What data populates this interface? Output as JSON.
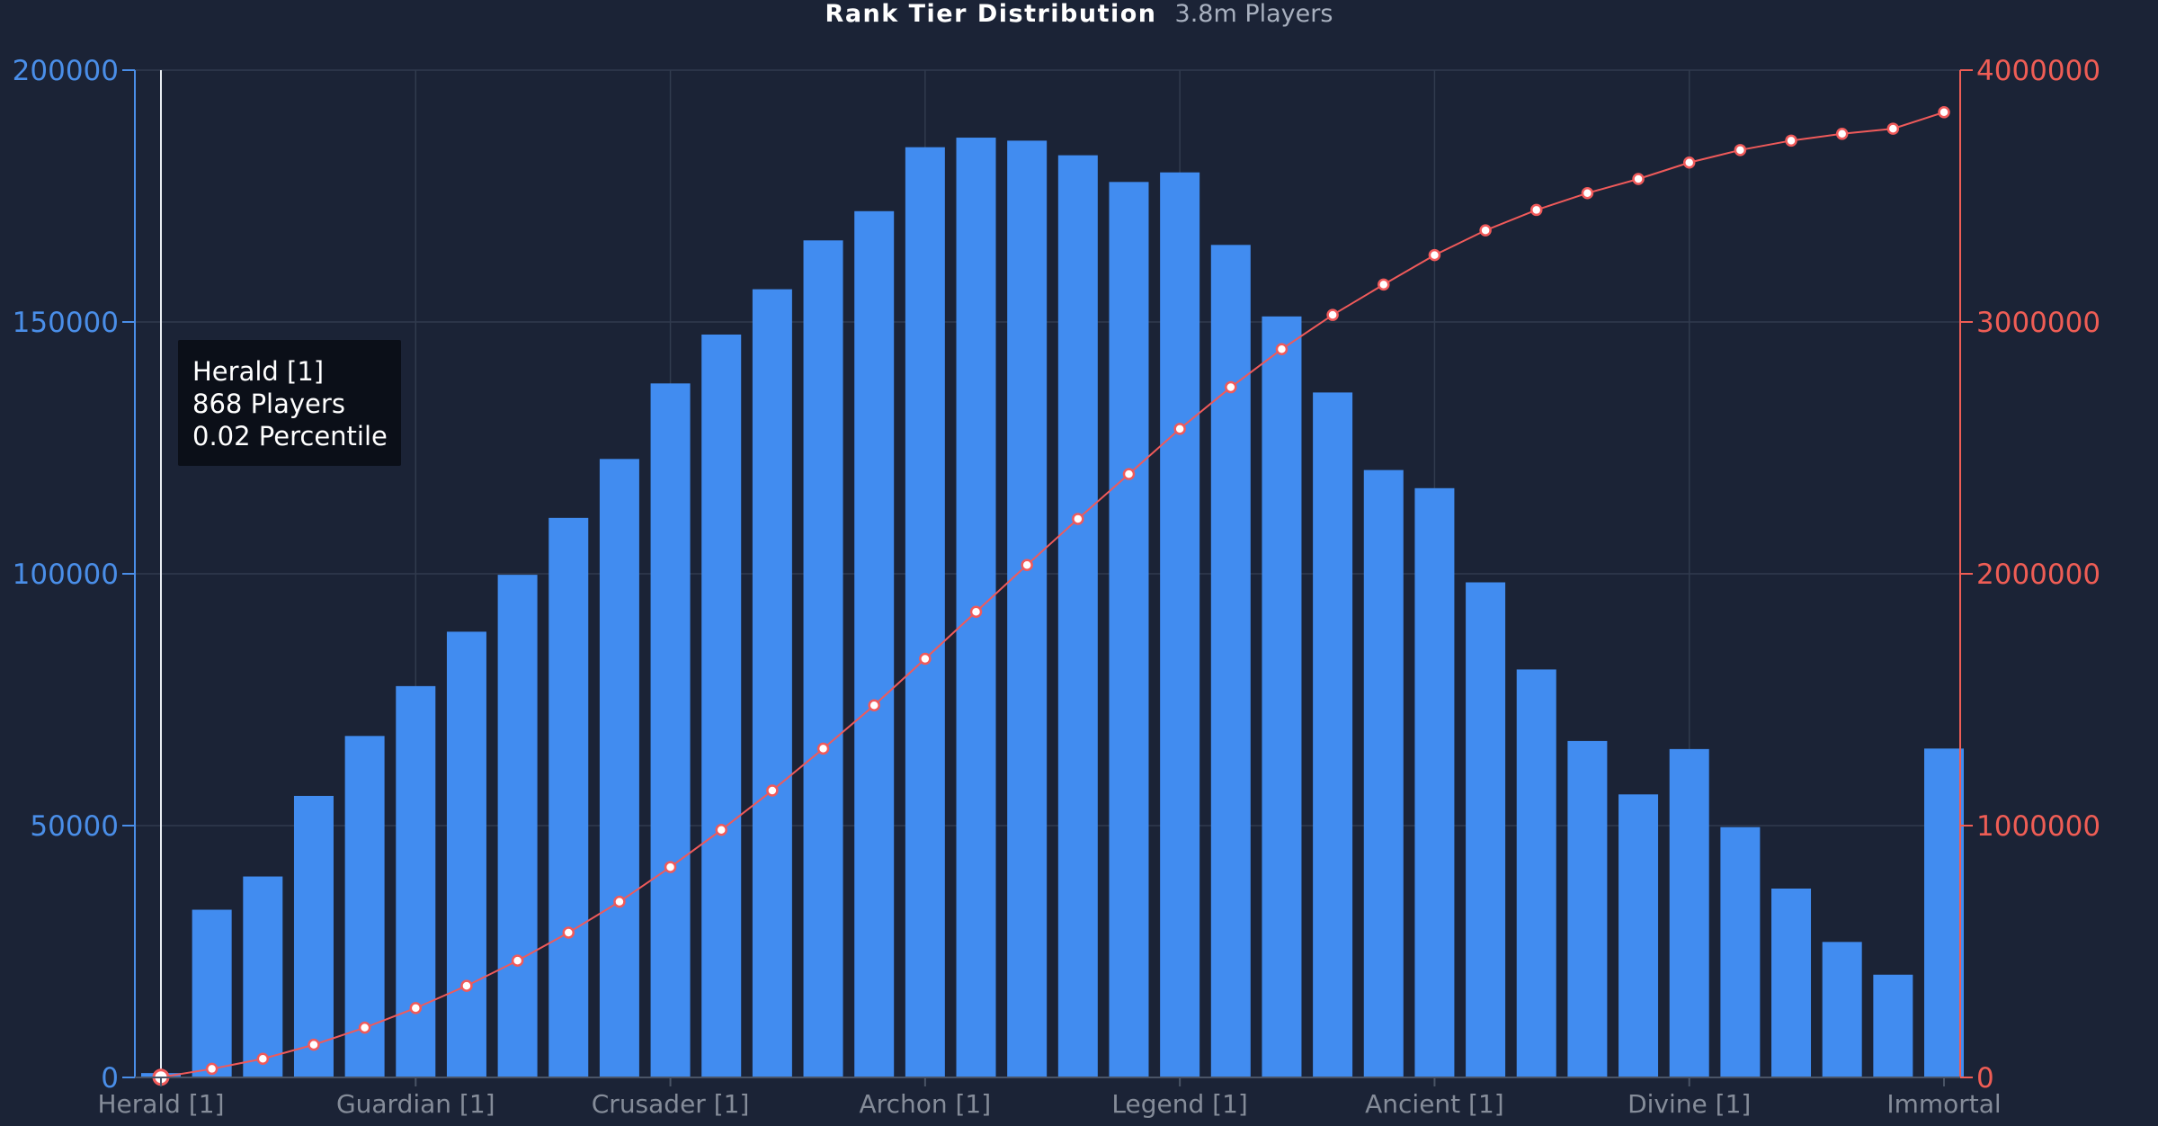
{
  "chart": {
    "title": "Rank Tier Distribution",
    "subtitle": "3.8m Players",
    "tooltip": {
      "line1": "Herald [1]",
      "line2": "868 Players",
      "line3": "0.02 Percentile"
    }
  },
  "colors": {
    "background": "#1b2336",
    "bar": "#418cf0",
    "line": "#f05a5a",
    "left_axis": "#4a8ee8",
    "right_axis": "#ef5d55",
    "x_tick": "#858c99",
    "grid": "#313b4e"
  },
  "chart_data": {
    "type": "bar",
    "x_tick_labels": [
      "Herald [1]",
      "Guardian [1]",
      "Crusader [1]",
      "Archon [1]",
      "Legend [1]",
      "Ancient [1]",
      "Divine [1]",
      "Immortal"
    ],
    "x_tick_bar_indices": [
      0,
      5,
      10,
      15,
      20,
      25,
      30,
      35
    ],
    "left_axis": {
      "min": 0,
      "max": 200000,
      "ticks": [
        "0",
        "50000",
        "100000",
        "150000",
        "200000"
      ]
    },
    "right_axis": {
      "min": 0,
      "max": 4000000,
      "ticks": [
        "0",
        "1000000",
        "2000000",
        "3000000",
        "4000000"
      ]
    },
    "series": [
      {
        "kind": "bar",
        "axis": "left",
        "values": [
          868,
          33300,
          39900,
          55900,
          67800,
          77700,
          88500,
          99800,
          111100,
          122800,
          137800,
          147500,
          156500,
          166200,
          172000,
          184700,
          186600,
          186000,
          183100,
          177800,
          179700,
          165300,
          151100,
          136000,
          120600,
          117000,
          98300,
          81000,
          66800,
          56200,
          65200,
          49700,
          37500,
          26900,
          20400,
          65300
        ]
      },
      {
        "kind": "line",
        "axis": "right",
        "values": [
          868,
          34168,
          74068,
          129968,
          197768,
          275468,
          363968,
          463768,
          574868,
          697668,
          835468,
          982968,
          1139468,
          1305668,
          1477668,
          1662368,
          1848968,
          2034968,
          2218068,
          2395868,
          2575568,
          2740868,
          2891968,
          3027968,
          3148568,
          3265568,
          3363868,
          3444868,
          3511668,
          3567868,
          3633068,
          3682768,
          3720268,
          3747168,
          3767568,
          3832868
        ]
      }
    ],
    "hover_index": 0
  }
}
